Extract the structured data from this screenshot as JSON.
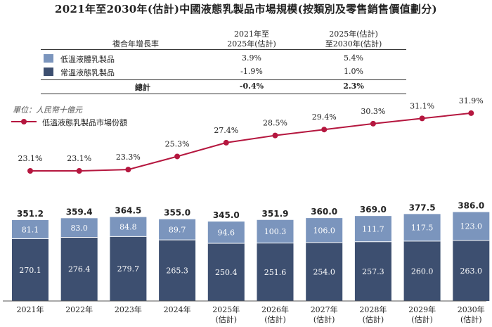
{
  "title": "2021年至2030年(估計)中國液態乳製品市場規模(按類別及零售銷售價值劃分)",
  "cagr_table": {
    "header_label": "複合年增長率",
    "col1": [
      "2021年至",
      "2025年(估計)"
    ],
    "col2": [
      "2025年(估計)",
      "至2030年(估計)"
    ],
    "rows": [
      {
        "label": "低溫液體乳製品",
        "v1": "3.9%",
        "v2": "5.4%",
        "color": "#7b95bd"
      },
      {
        "label": "常溫液態乳製品",
        "v1": "-1.9%",
        "v2": "1.0%",
        "color": "#3d4f70"
      }
    ],
    "total": {
      "label": "總計",
      "v1": "-0.4%",
      "v2": "2.3%"
    }
  },
  "unit_label": "單位：人民幣十億元",
  "line_legend_label": "低溫液態乳製品市場份額",
  "colors": {
    "low_temp": "#7b95bd",
    "ambient": "#3d4f70",
    "line": "#b5173f"
  },
  "chart_data": {
    "type": "bar",
    "stacked": true,
    "categories": [
      "2021年",
      "2022年",
      "2023年",
      "2024年",
      "2025年\n(估計)",
      "2026年\n(估計)",
      "2027年\n(估計)",
      "2028年\n(估計)",
      "2029年\n(估計)",
      "2030年\n(估計)"
    ],
    "series": [
      {
        "name": "常溫液態乳製品",
        "values": [
          270.1,
          276.4,
          279.7,
          265.3,
          250.4,
          251.6,
          254.0,
          257.3,
          260.0,
          263.0
        ]
      },
      {
        "name": "低溫液體乳製品",
        "values": [
          81.1,
          83.0,
          84.8,
          89.7,
          94.6,
          100.3,
          106.0,
          111.7,
          117.5,
          123.0
        ]
      }
    ],
    "totals": [
      351.2,
      359.4,
      364.5,
      355.0,
      345.0,
      351.9,
      360.0,
      369.0,
      377.5,
      386.0
    ],
    "totals_labels": [
      "351.2",
      "359.4",
      "364.5",
      "355.0",
      "345.0",
      "351.9",
      "360.0",
      "369.0",
      "377.5",
      "386.0"
    ],
    "ambient_labels": [
      "270.1",
      "276.4",
      "279.7",
      "265.3",
      "250.4",
      "251.6",
      "254.0",
      "257.3",
      "260.0",
      "263.0"
    ],
    "low_temp_labels": [
      "81.1",
      "83.0",
      "84.8",
      "89.7",
      "94.6",
      "100.3",
      "106.0",
      "111.7",
      "117.5",
      "123.0"
    ],
    "line_series": {
      "name": "低溫液態乳製品市場份額",
      "values": [
        23.1,
        23.1,
        23.3,
        25.3,
        27.4,
        28.5,
        29.4,
        30.3,
        31.1,
        31.9
      ],
      "labels": [
        "23.1%",
        "23.1%",
        "23.3%",
        "25.3%",
        "27.4%",
        "28.5%",
        "29.4%",
        "30.3%",
        "31.1%",
        "31.9%"
      ],
      "unit": "%"
    }
  }
}
